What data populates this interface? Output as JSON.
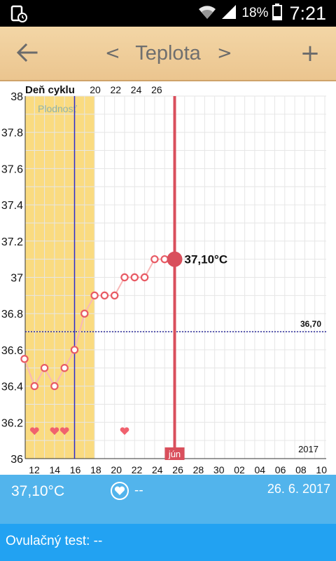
{
  "status_bar": {
    "battery_percent": "18%",
    "time": "7:21",
    "icons": [
      "sim-card-icon",
      "wifi-icon",
      "signal-icon",
      "battery-icon"
    ]
  },
  "header": {
    "back_icon": "arrow-left-icon",
    "prev_label": "<",
    "title": "Teplota",
    "next_label": ">",
    "add_label": "+"
  },
  "chart_data": {
    "type": "line",
    "top_axis_title": "Deň cyklu",
    "top_ticks": [
      "20",
      "22",
      "24",
      "26"
    ],
    "fertile_label": "Plodnosť",
    "y_ticks": [
      "38",
      "37.8",
      "37.6",
      "37.4",
      "37.2",
      "37",
      "36.8",
      "36.6",
      "36.4",
      "36.2",
      "36"
    ],
    "ylim": [
      36,
      38
    ],
    "x_ticks": [
      "12",
      "14",
      "16",
      "18",
      "20",
      "22",
      "24",
      "26",
      "28",
      "30",
      "02",
      "04",
      "06",
      "08",
      "10"
    ],
    "x_values": [
      11,
      12,
      13,
      14,
      15,
      16,
      17,
      18,
      19,
      20,
      21,
      22,
      23,
      24,
      25,
      26
    ],
    "y_values": [
      36.55,
      36.4,
      36.5,
      36.4,
      36.5,
      36.6,
      36.8,
      36.9,
      36.9,
      36.9,
      37.0,
      37.0,
      37.0,
      37.1,
      37.1,
      37.1
    ],
    "fertile_range": [
      11,
      18
    ],
    "cycle_day_line": 16,
    "selected_day": 26,
    "selected_label": "37,10°C",
    "selected_month_badge": "jún",
    "coverline_value": 36.7,
    "coverline_label": "36,70",
    "heart_days": [
      12,
      14,
      15,
      21
    ],
    "year_label": "2017",
    "colors": {
      "fertile": "#fadb80",
      "line": "#f8b8b8",
      "point": "#e85a64",
      "selected": "#d94f5c",
      "cycle_line": "#2a2acf",
      "coverline": "#2a2a9a"
    }
  },
  "panel": {
    "temperature": "37,10°C",
    "heart_value": "--",
    "date": "26. 6. 2017",
    "ovulation_test": "Ovulačný test: --"
  }
}
